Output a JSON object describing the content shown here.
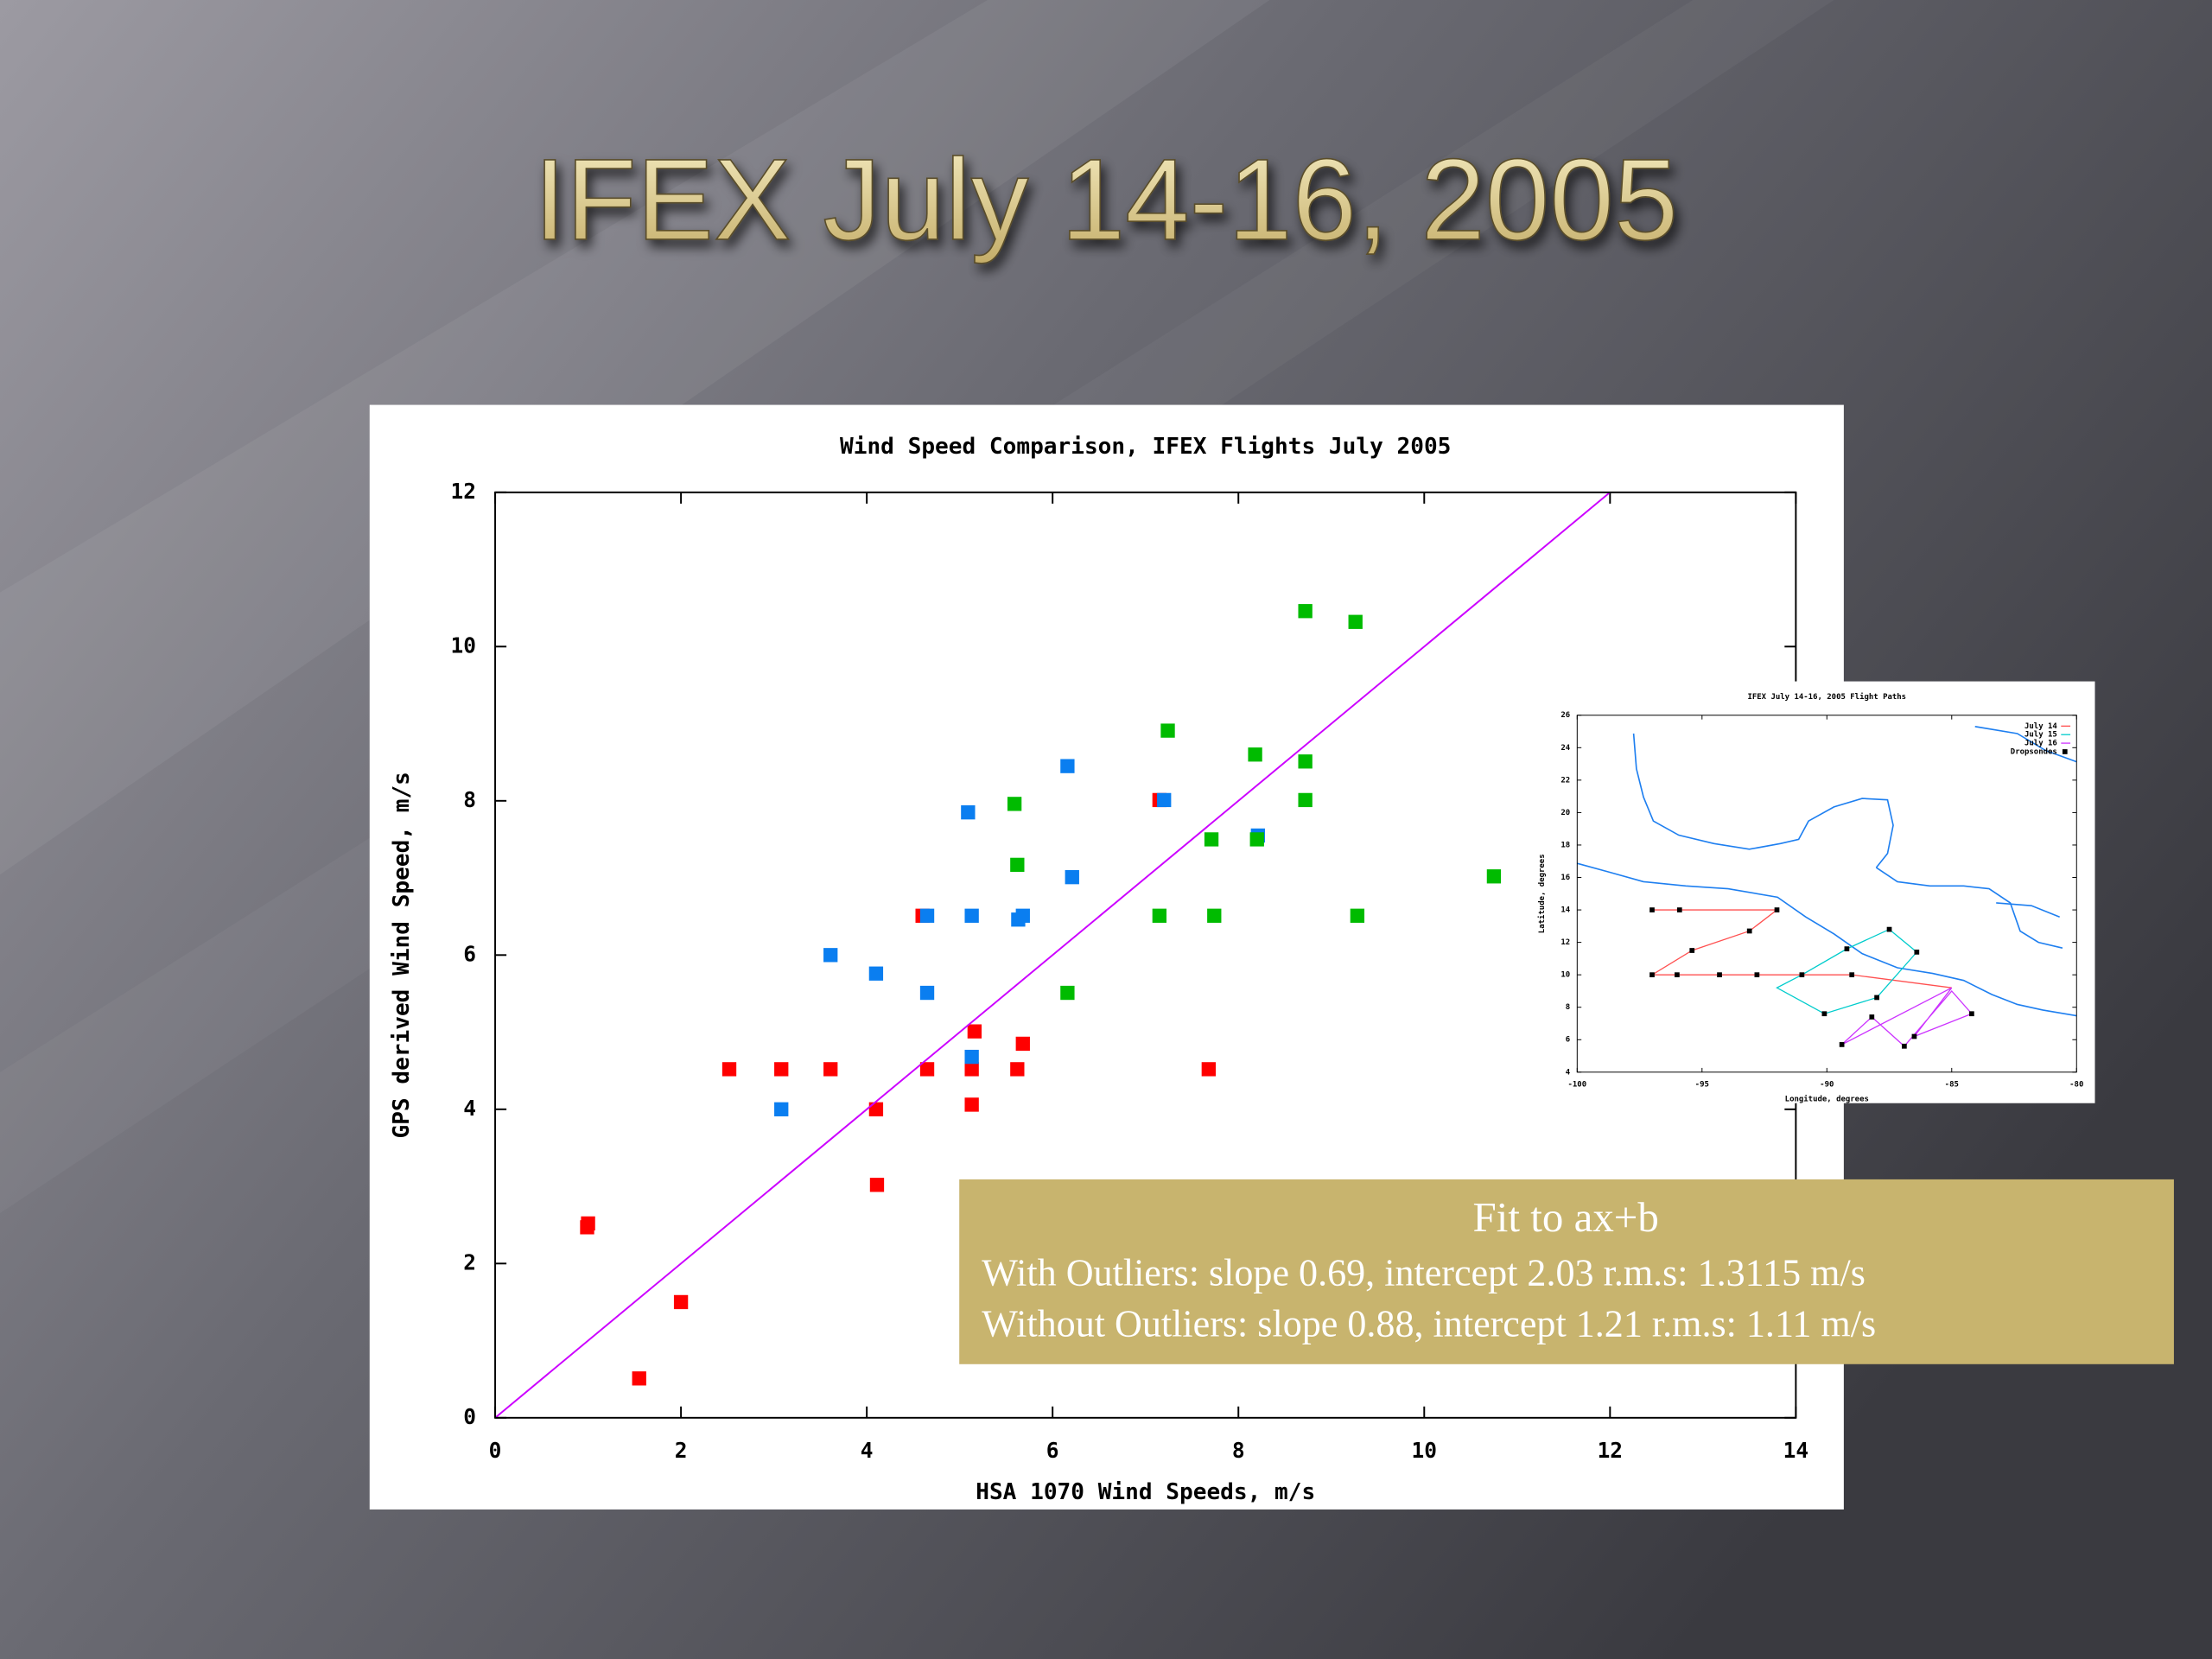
{
  "slide": {
    "title": "IFEX July 14-16, 2005"
  },
  "chart_data": [
    {
      "type": "scatter",
      "title": "Wind Speed Comparison, IFEX Flights July 2005",
      "x_label": "HSA 1070 Wind Speeds, m/s",
      "y_label": "GPS derived Wind Speed, m/s",
      "xlim": [
        0,
        14
      ],
      "ylim": [
        0,
        12
      ],
      "xticks": [
        0,
        2,
        4,
        6,
        8,
        10,
        12,
        14
      ],
      "yticks": [
        0,
        2,
        4,
        6,
        8,
        10,
        12
      ],
      "series": [
        {
          "color": "#ff0000",
          "x": [
            0.99,
            1.0,
            1.55,
            2.0,
            2.52,
            3.08,
            3.61,
            4.1,
            4.11,
            4.6,
            4.65,
            5.16,
            5.13,
            5.13,
            5.62,
            5.68,
            7.15,
            7.68
          ],
          "values": [
            2.47,
            2.52,
            0.51,
            1.5,
            4.52,
            4.52,
            4.52,
            4.0,
            3.02,
            6.51,
            4.52,
            5.01,
            4.52,
            4.06,
            4.52,
            4.85,
            8.01,
            4.52
          ]
        },
        {
          "color": "#0a7ef0",
          "x": [
            3.08,
            3.61,
            4.1,
            4.65,
            4.65,
            5.09,
            5.13,
            5.13,
            5.63,
            5.68,
            6.16,
            6.21,
            7.2,
            8.21
          ],
          "values": [
            4.0,
            6.0,
            5.76,
            6.51,
            5.51,
            7.85,
            6.51,
            4.68,
            6.46,
            6.51,
            8.45,
            7.01,
            8.01,
            7.55
          ]
        },
        {
          "color": "#00bb00",
          "x": [
            5.59,
            5.62,
            6.16,
            7.15,
            7.24,
            7.71,
            7.74,
            8.18,
            8.2,
            8.72,
            8.72,
            8.72,
            9.26,
            9.28,
            10.75
          ],
          "values": [
            7.96,
            7.17,
            5.51,
            6.51,
            8.91,
            7.5,
            6.51,
            8.6,
            7.5,
            10.46,
            8.51,
            8.01,
            10.32,
            6.51,
            7.02
          ]
        },
        {
          "color": "#cc00ff",
          "style": "line",
          "x": [
            0,
            12
          ],
          "values": [
            0,
            12
          ]
        }
      ]
    },
    {
      "type": "line",
      "title": "IFEX July 14-16, 2005 Flight Paths",
      "x_label": "Longitude, degrees",
      "y_label": "Latitude, degrees",
      "xlim": [
        -100,
        -80
      ],
      "ylim": [
        4,
        26
      ],
      "xticks": [
        -100,
        -95,
        -90,
        -85,
        -80
      ],
      "yticks": [
        4,
        6,
        8,
        10,
        12,
        14,
        16,
        18,
        20,
        22,
        24,
        26
      ],
      "legend": "upper right",
      "series": [
        {
          "name": "July 14",
          "color": "#ff5050",
          "x": [
            -97,
            -95.9,
            -92,
            -93.1,
            -95.4,
            -97,
            -92,
            -89,
            -85
          ],
          "values": [
            14,
            14,
            14,
            12.7,
            11.5,
            10,
            10,
            10,
            9.2
          ]
        },
        {
          "name": "July 15",
          "color": "#00cccc",
          "x": [
            -91,
            -89.2,
            -87.5,
            -86.4,
            -88,
            -90.1,
            -92,
            -91
          ],
          "values": [
            10,
            11.6,
            12.8,
            11.4,
            8.6,
            7.6,
            9.2,
            10
          ]
        },
        {
          "name": "July 16",
          "color": "#cc33ff",
          "x": [
            -85,
            -89.4,
            -88.2,
            -86.9,
            -85,
            -84.2,
            -86.5,
            -85
          ],
          "values": [
            9.2,
            5.7,
            7.4,
            5.6,
            9,
            7.6,
            6.2,
            9.2
          ]
        },
        {
          "name": "Dropsondes",
          "color": "#000000",
          "style": "marker",
          "x": [
            -97,
            -95.9,
            -92,
            -93.1,
            -95.4,
            -97,
            -96,
            -94.3,
            -92.8,
            -91,
            -89.2,
            -87.5,
            -86.4,
            -88,
            -90.1,
            -89.4,
            -88.2,
            -86.9,
            -84.2,
            -86.5,
            -89
          ],
          "values": [
            14,
            14,
            14,
            12.7,
            11.5,
            10,
            10,
            10,
            10,
            10,
            11.6,
            12.8,
            11.4,
            8.6,
            7.6,
            5.7,
            7.4,
            5.6,
            7.6,
            6.2,
            10
          ]
        }
      ]
    }
  ],
  "fit_box": {
    "heading": "Fit to ax+b",
    "lines": [
      "With Outliers:  slope 0.69,  intercept  2.03 r.m.s: 1.3115 m/s",
      "Without Outliers:  slope  0.88,  intercept 1.21 r.m.s: 1.11 m/s"
    ]
  }
}
